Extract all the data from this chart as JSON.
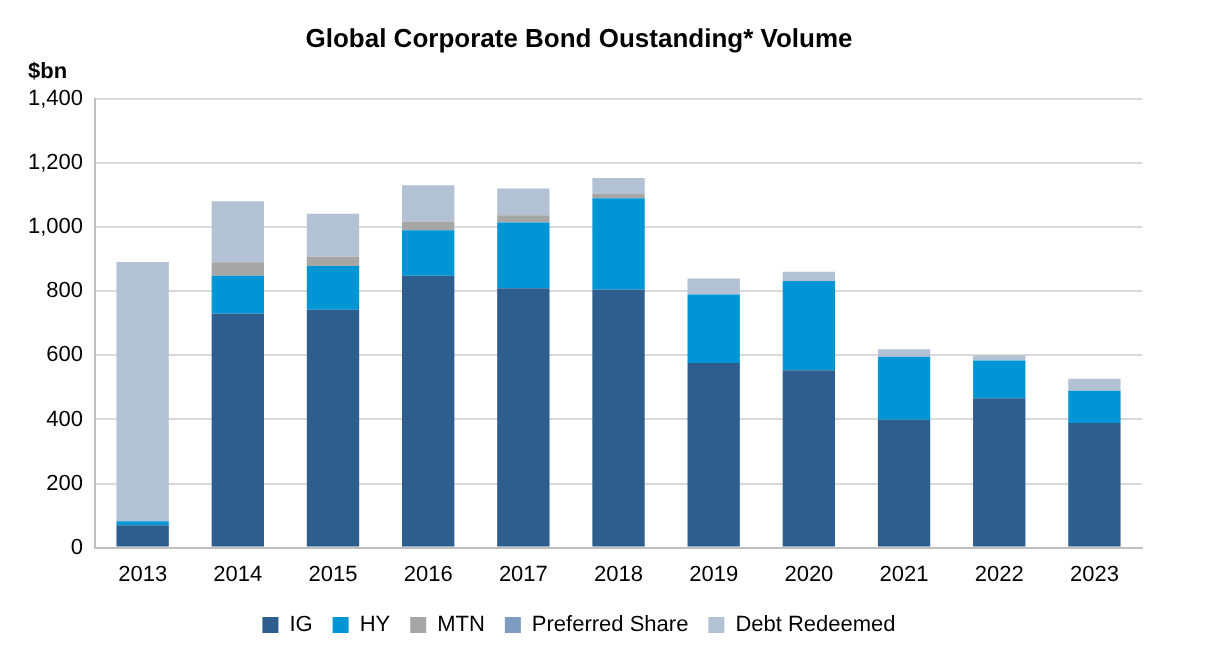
{
  "chart_data": {
    "type": "bar",
    "title": "Global Corporate Bond Oustanding* Volume",
    "ylabel": "$bn",
    "stacked": true,
    "grid": "y",
    "legend": "bottom",
    "categories": [
      "2013",
      "2014",
      "2015",
      "2016",
      "2017",
      "2018",
      "2019",
      "2020",
      "2021",
      "2022",
      "2023"
    ],
    "ylim": [
      0,
      1400
    ],
    "yticks": [
      {
        "value": 0,
        "label": "0"
      },
      {
        "value": 200,
        "label": "200"
      },
      {
        "value": 400,
        "label": "400"
      },
      {
        "value": 600,
        "label": "600"
      },
      {
        "value": 800,
        "label": "800"
      },
      {
        "value": 1000,
        "label": "1,000"
      },
      {
        "value": 1200,
        "label": "1,200"
      },
      {
        "value": 1400,
        "label": "1,400"
      }
    ],
    "series": [
      {
        "name": "IG",
        "color": "#2d5e8e",
        "values": [
          70,
          731,
          743,
          849,
          810,
          806,
          576,
          554,
          399,
          466,
          389
        ]
      },
      {
        "name": "HY",
        "color": "#0096d6",
        "values": [
          12,
          118,
          136,
          142,
          205,
          285,
          214,
          278,
          197,
          118,
          101
        ]
      },
      {
        "name": "MTN",
        "color": "#a6a6a6",
        "values": [
          0,
          42,
          29,
          27,
          23,
          14,
          null,
          null,
          null,
          null,
          null
        ]
      },
      {
        "name": "Preferred Share",
        "color": "#7f9cc0",
        "values": [
          0,
          0,
          0,
          0,
          0,
          0,
          0,
          0,
          0,
          0,
          0
        ]
      },
      {
        "name": "Debt Redeemed",
        "color": "#b3c1d5",
        "values": [
          810,
          190,
          134,
          113,
          83,
          49,
          50,
          29,
          23,
          16,
          37
        ]
      }
    ]
  }
}
